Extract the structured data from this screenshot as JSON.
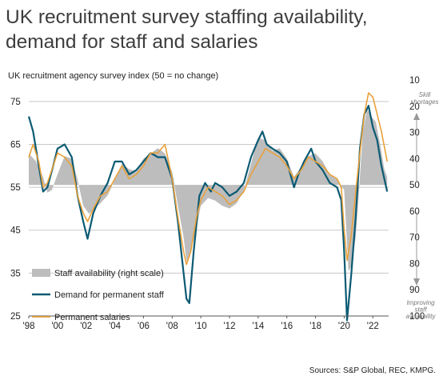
{
  "title": "UK recruitment survey staffing availability, demand for staff and salaries",
  "chart_data": {
    "type": "line",
    "subtitle": "UK recruitment agency survey index (50 = no change)",
    "left_axis": {
      "ticks": [
        25,
        35,
        45,
        55,
        65,
        75
      ],
      "range": [
        25,
        80
      ]
    },
    "right_axis": {
      "ticks": [
        10,
        20,
        30,
        40,
        50,
        60,
        70,
        80,
        90,
        100
      ],
      "range": [
        10,
        100
      ],
      "inverted": true,
      "baseline": 50
    },
    "x_ticks": [
      "'98",
      "'00",
      "'02",
      "'04",
      "'06",
      "'08",
      "'10",
      "'12",
      "'14",
      "'16",
      "'18",
      "'20",
      "'22"
    ],
    "x_range": [
      1998.0,
      2023.1
    ],
    "grid": true,
    "annotations": {
      "top_right": "Skill shortages",
      "bottom_right": "Improving staff availability"
    },
    "series": [
      {
        "name": "Staff availability (right scale)",
        "kind": "area",
        "axis": "right",
        "color": "#bdbdbd",
        "points": [
          [
            1998.0,
            38
          ],
          [
            1998.5,
            41
          ],
          [
            1999.0,
            47
          ],
          [
            1999.3,
            53
          ],
          [
            1999.6,
            52
          ],
          [
            2000.0,
            46
          ],
          [
            2000.5,
            39
          ],
          [
            2001.0,
            40
          ],
          [
            2001.4,
            48
          ],
          [
            2001.8,
            58
          ],
          [
            2002.2,
            61
          ],
          [
            2002.6,
            59
          ],
          [
            2003.0,
            57
          ],
          [
            2003.5,
            54
          ],
          [
            2004.0,
            48
          ],
          [
            2004.5,
            42
          ],
          [
            2005.0,
            44
          ],
          [
            2005.5,
            45
          ],
          [
            2006.0,
            40
          ],
          [
            2006.5,
            38
          ],
          [
            2007.0,
            36
          ],
          [
            2007.5,
            38
          ],
          [
            2008.0,
            45
          ],
          [
            2008.4,
            58
          ],
          [
            2008.8,
            70
          ],
          [
            2009.0,
            79
          ],
          [
            2009.3,
            76
          ],
          [
            2009.7,
            66
          ],
          [
            2010.0,
            58
          ],
          [
            2010.5,
            55
          ],
          [
            2011.0,
            56
          ],
          [
            2011.5,
            58
          ],
          [
            2012.0,
            59
          ],
          [
            2012.5,
            57
          ],
          [
            2013.0,
            52
          ],
          [
            2013.5,
            42
          ],
          [
            2014.0,
            32
          ],
          [
            2014.5,
            33
          ],
          [
            2015.0,
            37
          ],
          [
            2015.5,
            36
          ],
          [
            2016.0,
            40
          ],
          [
            2016.5,
            47
          ],
          [
            2017.0,
            43
          ],
          [
            2017.5,
            39
          ],
          [
            2018.0,
            38
          ],
          [
            2018.5,
            41
          ],
          [
            2019.0,
            46
          ],
          [
            2019.5,
            48
          ],
          [
            2020.0,
            52
          ],
          [
            2020.3,
            83
          ],
          [
            2020.5,
            81
          ],
          [
            2020.8,
            70
          ],
          [
            2021.0,
            55
          ],
          [
            2021.3,
            30
          ],
          [
            2021.6,
            21
          ],
          [
            2021.9,
            24
          ],
          [
            2022.2,
            26
          ],
          [
            2022.5,
            34
          ],
          [
            2022.8,
            44
          ],
          [
            2023.0,
            47
          ]
        ]
      },
      {
        "name": "Demand for permanent staff",
        "kind": "line",
        "axis": "left",
        "color": "#0b5a73",
        "points": [
          [
            1998.0,
            71.5
          ],
          [
            1998.3,
            68
          ],
          [
            1998.7,
            60
          ],
          [
            1999.0,
            54
          ],
          [
            1999.3,
            55
          ],
          [
            1999.7,
            60
          ],
          [
            2000.0,
            64
          ],
          [
            2000.5,
            65
          ],
          [
            2001.0,
            62
          ],
          [
            2001.4,
            53
          ],
          [
            2001.8,
            47
          ],
          [
            2002.1,
            43
          ],
          [
            2002.5,
            49
          ],
          [
            2003.0,
            53
          ],
          [
            2003.5,
            56
          ],
          [
            2004.0,
            61
          ],
          [
            2004.5,
            61
          ],
          [
            2005.0,
            58
          ],
          [
            2005.5,
            59
          ],
          [
            2006.0,
            61
          ],
          [
            2006.5,
            63
          ],
          [
            2007.0,
            62
          ],
          [
            2007.5,
            62
          ],
          [
            2008.0,
            57
          ],
          [
            2008.4,
            47
          ],
          [
            2008.8,
            35
          ],
          [
            2009.0,
            29
          ],
          [
            2009.2,
            28
          ],
          [
            2009.5,
            40
          ],
          [
            2009.9,
            53
          ],
          [
            2010.3,
            56
          ],
          [
            2010.7,
            54
          ],
          [
            2011.0,
            56
          ],
          [
            2011.5,
            55
          ],
          [
            2012.0,
            53
          ],
          [
            2012.5,
            54
          ],
          [
            2013.0,
            56
          ],
          [
            2013.5,
            62
          ],
          [
            2014.0,
            66
          ],
          [
            2014.3,
            68
          ],
          [
            2014.6,
            65
          ],
          [
            2015.0,
            64
          ],
          [
            2015.5,
            63
          ],
          [
            2016.0,
            61
          ],
          [
            2016.5,
            55
          ],
          [
            2016.8,
            58
          ],
          [
            2017.2,
            61
          ],
          [
            2017.7,
            64
          ],
          [
            2018.0,
            61
          ],
          [
            2018.5,
            59
          ],
          [
            2019.0,
            56
          ],
          [
            2019.5,
            55
          ],
          [
            2019.8,
            52
          ],
          [
            2020.0,
            40
          ],
          [
            2020.2,
            24
          ],
          [
            2020.5,
            35
          ],
          [
            2020.8,
            48
          ],
          [
            2021.1,
            64
          ],
          [
            2021.4,
            72
          ],
          [
            2021.7,
            74
          ],
          [
            2022.0,
            69
          ],
          [
            2022.3,
            66
          ],
          [
            2022.6,
            60
          ],
          [
            2023.0,
            54
          ]
        ]
      },
      {
        "name": "Permanent salaries",
        "kind": "line",
        "axis": "left",
        "color": "#e8a13a",
        "points": [
          [
            1998.0,
            62
          ],
          [
            1998.3,
            65
          ],
          [
            1998.7,
            61
          ],
          [
            1999.0,
            55
          ],
          [
            1999.3,
            56
          ],
          [
            1999.7,
            60
          ],
          [
            2000.0,
            63
          ],
          [
            2000.5,
            62
          ],
          [
            2001.0,
            60
          ],
          [
            2001.4,
            53
          ],
          [
            2001.8,
            49
          ],
          [
            2002.1,
            47
          ],
          [
            2002.5,
            50
          ],
          [
            2003.0,
            53
          ],
          [
            2003.5,
            54
          ],
          [
            2004.0,
            57
          ],
          [
            2004.5,
            60
          ],
          [
            2005.0,
            57
          ],
          [
            2005.5,
            58
          ],
          [
            2006.0,
            60
          ],
          [
            2006.5,
            63
          ],
          [
            2007.0,
            63
          ],
          [
            2007.5,
            65
          ],
          [
            2008.0,
            57
          ],
          [
            2008.4,
            48
          ],
          [
            2008.8,
            40
          ],
          [
            2009.0,
            37
          ],
          [
            2009.3,
            40
          ],
          [
            2009.7,
            48
          ],
          [
            2010.0,
            52
          ],
          [
            2010.5,
            55
          ],
          [
            2011.0,
            54
          ],
          [
            2011.5,
            53
          ],
          [
            2012.0,
            51
          ],
          [
            2012.5,
            52
          ],
          [
            2013.0,
            54
          ],
          [
            2013.5,
            58
          ],
          [
            2014.0,
            61
          ],
          [
            2014.5,
            64
          ],
          [
            2015.0,
            63
          ],
          [
            2015.5,
            62
          ],
          [
            2016.0,
            60
          ],
          [
            2016.5,
            57
          ],
          [
            2017.0,
            59
          ],
          [
            2017.5,
            62
          ],
          [
            2018.0,
            61
          ],
          [
            2018.5,
            60
          ],
          [
            2019.0,
            58
          ],
          [
            2019.5,
            57
          ],
          [
            2019.8,
            55
          ],
          [
            2020.0,
            45
          ],
          [
            2020.2,
            38
          ],
          [
            2020.5,
            44
          ],
          [
            2020.8,
            54
          ],
          [
            2021.1,
            63
          ],
          [
            2021.4,
            72
          ],
          [
            2021.7,
            77
          ],
          [
            2022.0,
            76
          ],
          [
            2022.3,
            72
          ],
          [
            2022.6,
            68
          ],
          [
            2023.0,
            61
          ]
        ]
      }
    ],
    "legend": {
      "placement": "bottom-left",
      "items": [
        "Staff availability (right scale)",
        "Demand for permanent staff",
        "Permanent salaries"
      ]
    },
    "source": "Sources: S&P Global, REC, KMPG."
  }
}
